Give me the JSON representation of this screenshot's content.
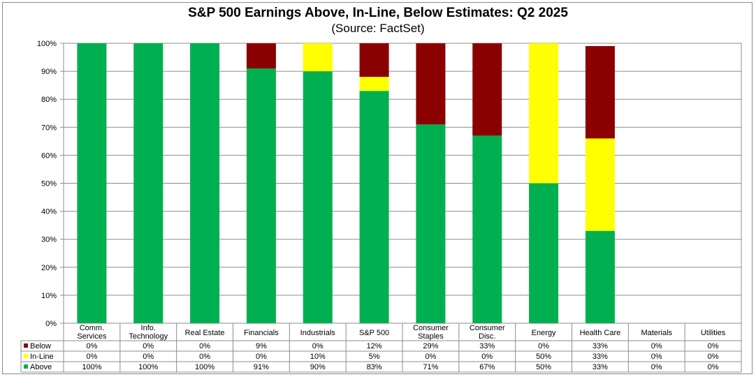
{
  "chart_data": {
    "type": "bar",
    "stacked": true,
    "title": "S&P 500 Earnings Above, In-Line, Below Estimates: Q2 2025",
    "subtitle": "(Source: FactSet)",
    "ylim": [
      0,
      100
    ],
    "yticks": [
      "0%",
      "10%",
      "20%",
      "30%",
      "40%",
      "50%",
      "60%",
      "70%",
      "80%",
      "90%",
      "100%"
    ],
    "grid": true,
    "categories": [
      [
        "Comm.",
        "Services"
      ],
      [
        "Info.",
        "Technology"
      ],
      [
        "Real Estate"
      ],
      [
        "Financials"
      ],
      [
        "Industrials"
      ],
      [
        "S&P 500"
      ],
      [
        "Consumer",
        "Staples"
      ],
      [
        "Consumer",
        "Disc."
      ],
      [
        "Energy"
      ],
      [
        "Health Care"
      ],
      [
        "Materials"
      ],
      [
        "Utilities"
      ]
    ],
    "series": [
      {
        "name": "Below",
        "color": "#8b0000",
        "values": [
          0,
          0,
          0,
          9,
          0,
          12,
          29,
          33,
          0,
          33,
          0,
          0
        ],
        "labels": [
          "0%",
          "0%",
          "0%",
          "9%",
          "0%",
          "12%",
          "29%",
          "33%",
          "0%",
          "33%",
          "0%",
          "0%"
        ]
      },
      {
        "name": "In-Line",
        "color": "#ffff00",
        "values": [
          0,
          0,
          0,
          0,
          10,
          5,
          0,
          0,
          50,
          33,
          0,
          0
        ],
        "labels": [
          "0%",
          "0%",
          "0%",
          "0%",
          "10%",
          "5%",
          "0%",
          "0%",
          "50%",
          "33%",
          "0%",
          "0%"
        ]
      },
      {
        "name": "Above",
        "color": "#00b050",
        "values": [
          100,
          100,
          100,
          91,
          90,
          83,
          71,
          67,
          50,
          33,
          0,
          0
        ],
        "labels": [
          "100%",
          "100%",
          "100%",
          "91%",
          "90%",
          "83%",
          "71%",
          "67%",
          "50%",
          "33%",
          "0%",
          "0%"
        ]
      }
    ],
    "legend_placement": "data-table"
  }
}
